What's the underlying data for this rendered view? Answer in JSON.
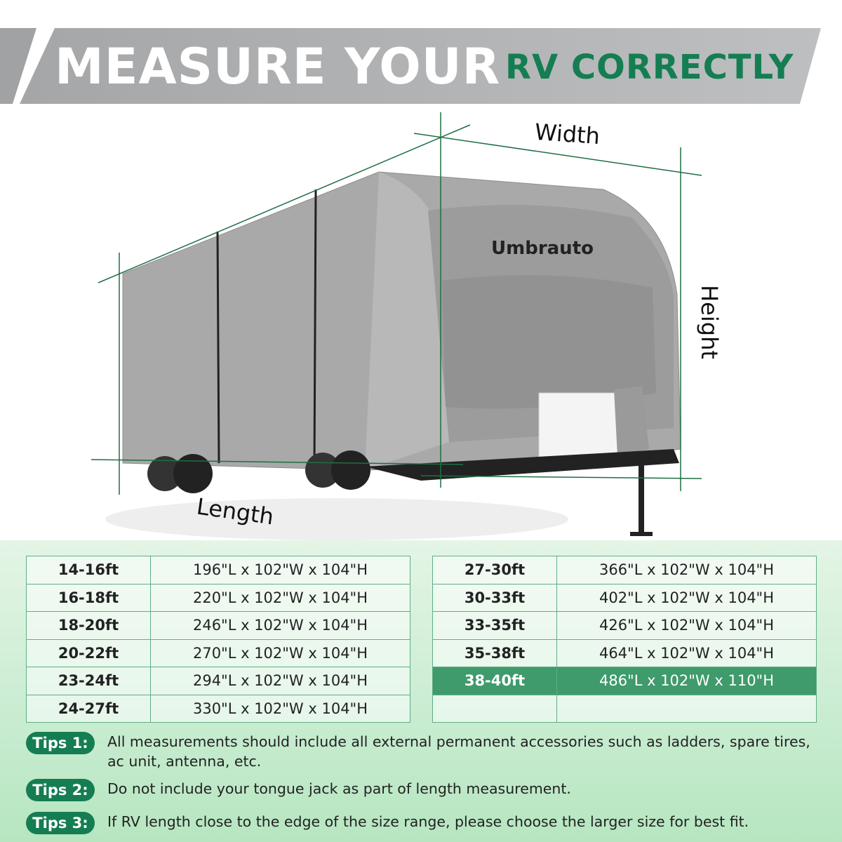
{
  "banner": {
    "title_white": "MEASURE YOUR",
    "title_green": "RV CORRECTLY"
  },
  "illustration": {
    "brand": "Umbrauto",
    "labels": {
      "width": "Width",
      "height": "Height",
      "length": "Length"
    }
  },
  "colors": {
    "green": "#157d52",
    "highlight_row": "#3f9a6c",
    "banner_gray": "#b0b2b4"
  },
  "size_table": {
    "left": [
      {
        "size": "14-16ft",
        "dims": "196\"L x 102\"W x 104\"H"
      },
      {
        "size": "16-18ft",
        "dims": "220\"L x 102\"W x 104\"H"
      },
      {
        "size": "18-20ft",
        "dims": "246\"L x 102\"W x 104\"H"
      },
      {
        "size": "20-22ft",
        "dims": "270\"L x 102\"W x 104\"H"
      },
      {
        "size": "23-24ft",
        "dims": "294\"L x 102\"W x 104\"H"
      },
      {
        "size": "24-27ft",
        "dims": "330\"L x 102\"W x 104\"H"
      }
    ],
    "right": [
      {
        "size": "27-30ft",
        "dims": "366\"L x 102\"W x 104\"H"
      },
      {
        "size": "30-33ft",
        "dims": "402\"L x 102\"W x 104\"H"
      },
      {
        "size": "33-35ft",
        "dims": "426\"L x 102\"W x 104\"H"
      },
      {
        "size": "35-38ft",
        "dims": "464\"L x 102\"W x 104\"H"
      },
      {
        "size": "38-40ft",
        "dims": "486\"L x 102\"W x 110\"H",
        "highlighted": true
      },
      {
        "size": "",
        "dims": ""
      }
    ]
  },
  "tips": [
    {
      "label": "Tips 1:",
      "text": "All measurements should include all external permanent accessories such as ladders, spare tires, ac unit, antenna, etc."
    },
    {
      "label": "Tips 2:",
      "text": "Do not include your tongue jack as part of length measurement."
    },
    {
      "label": "Tips 3:",
      "text": "If RV length close to the edge of the size range, please choose the larger size for best fit."
    }
  ]
}
